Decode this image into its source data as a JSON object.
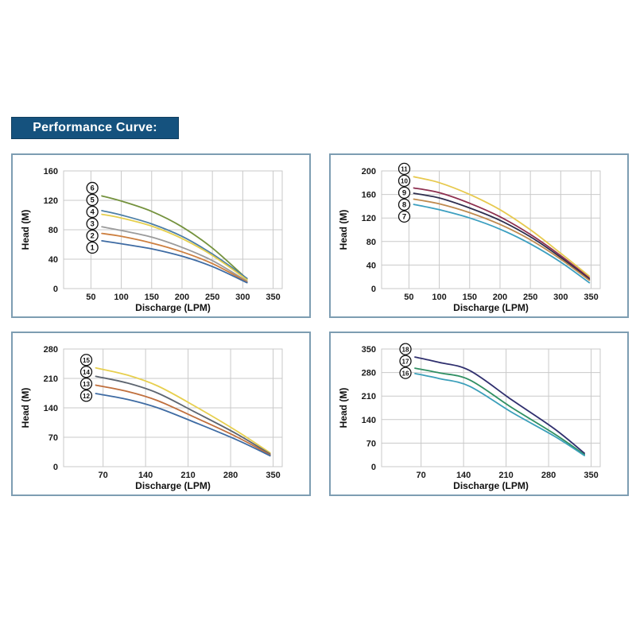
{
  "header": {
    "label": "Performance Curve:",
    "bg": "#15527e",
    "text_color": "#ffffff"
  },
  "colors": {
    "panel_border": "#7d9db2",
    "gridline": "#c9c9c9",
    "tick_text": "#1a1a1a",
    "axis_text": "#111111"
  },
  "chart_data": [
    {
      "id": "top-left",
      "type": "line",
      "xlabel": "Discharge (LPM)",
      "ylabel": "Head (M)",
      "x_domain": [
        5,
        365
      ],
      "xticks": [
        50,
        100,
        150,
        200,
        250,
        300,
        350
      ],
      "yticks": [
        0,
        40,
        80,
        120,
        160
      ],
      "ylim": [
        0,
        160
      ],
      "grid": true,
      "legend_position": "circled-badges-left",
      "series": [
        {
          "label": "6",
          "color": "#74923d",
          "points": [
            [
              68,
              126
            ],
            [
              100,
              119
            ],
            [
              150,
              105
            ],
            [
              200,
              84
            ],
            [
              250,
              55
            ],
            [
              307,
              13
            ]
          ]
        },
        {
          "label": "5",
          "color": "#4d7fa6",
          "points": [
            [
              68,
              106
            ],
            [
              100,
              100
            ],
            [
              150,
              88
            ],
            [
              200,
              71
            ],
            [
              250,
              47
            ],
            [
              307,
              14
            ]
          ]
        },
        {
          "label": "4",
          "color": "#e5cf4e",
          "points": [
            [
              68,
              101
            ],
            [
              100,
              96
            ],
            [
              150,
              85
            ],
            [
              200,
              68
            ],
            [
              250,
              45
            ],
            [
              307,
              12
            ]
          ]
        },
        {
          "label": "3",
          "color": "#9b9b9b",
          "points": [
            [
              68,
              84
            ],
            [
              100,
              79
            ],
            [
              150,
              70
            ],
            [
              200,
              56
            ],
            [
              250,
              38
            ],
            [
              307,
              10
            ]
          ]
        },
        {
          "label": "2",
          "color": "#cd7f3f",
          "points": [
            [
              68,
              75
            ],
            [
              100,
              71
            ],
            [
              150,
              62
            ],
            [
              200,
              50
            ],
            [
              250,
              34
            ],
            [
              307,
              9
            ]
          ]
        },
        {
          "label": "1",
          "color": "#3e6ba3",
          "points": [
            [
              68,
              65
            ],
            [
              100,
              61
            ],
            [
              150,
              54
            ],
            [
              200,
              44
            ],
            [
              250,
              30
            ],
            [
              307,
              8
            ]
          ]
        }
      ]
    },
    {
      "id": "top-right",
      "type": "line",
      "xlabel": "Discharge (LPM)",
      "ylabel": "Head (M)",
      "x_domain": [
        5,
        365
      ],
      "xticks": [
        50,
        100,
        150,
        200,
        250,
        300,
        350
      ],
      "yticks": [
        0,
        40,
        80,
        120,
        160,
        200
      ],
      "ylim": [
        0,
        200
      ],
      "grid": true,
      "legend_position": "circled-badges-left",
      "series": [
        {
          "label": "11",
          "color": "#e7c94e",
          "points": [
            [
              58,
              190
            ],
            [
              100,
              180
            ],
            [
              150,
              160
            ],
            [
              200,
              134
            ],
            [
              250,
              100
            ],
            [
              300,
              60
            ],
            [
              347,
              21
            ]
          ]
        },
        {
          "label": "10",
          "color": "#8e3050",
          "points": [
            [
              58,
              171
            ],
            [
              100,
              163
            ],
            [
              150,
              145
            ],
            [
              200,
              122
            ],
            [
              250,
              92
            ],
            [
              300,
              56
            ],
            [
              347,
              18
            ]
          ]
        },
        {
          "label": "9",
          "color": "#2e2e4e",
          "points": [
            [
              58,
              162
            ],
            [
              100,
              154
            ],
            [
              150,
              137
            ],
            [
              200,
              116
            ],
            [
              250,
              88
            ],
            [
              300,
              53
            ],
            [
              347,
              16
            ]
          ]
        },
        {
          "label": "8",
          "color": "#bf8a4e",
          "points": [
            [
              58,
              152
            ],
            [
              100,
              144
            ],
            [
              150,
              129
            ],
            [
              200,
              109
            ],
            [
              250,
              83
            ],
            [
              300,
              50
            ],
            [
              347,
              14
            ]
          ]
        },
        {
          "label": "7",
          "color": "#3c9fc0",
          "points": [
            [
              58,
              143
            ],
            [
              100,
              134
            ],
            [
              150,
              120
            ],
            [
              200,
              101
            ],
            [
              250,
              76
            ],
            [
              300,
              45
            ],
            [
              347,
              10
            ]
          ]
        }
      ]
    },
    {
      "id": "bottom-left",
      "type": "line",
      "xlabel": "Discharge (LPM)",
      "ylabel": "Head (M)",
      "x_domain": [
        5,
        365
      ],
      "xticks": [
        70,
        140,
        210,
        280,
        350
      ],
      "yticks": [
        0,
        70,
        140,
        210,
        280
      ],
      "ylim": [
        0,
        280
      ],
      "grid": true,
      "legend_position": "circled-badges-left",
      "series": [
        {
          "label": "15",
          "color": "#e7cf4e",
          "points": [
            [
              58,
              235
            ],
            [
              110,
              218
            ],
            [
              160,
              192
            ],
            [
              220,
              145
            ],
            [
              290,
              85
            ],
            [
              345,
              33
            ]
          ]
        },
        {
          "label": "14",
          "color": "#5d6570",
          "points": [
            [
              58,
              215
            ],
            [
              110,
              199
            ],
            [
              160,
              175
            ],
            [
              220,
              131
            ],
            [
              290,
              78
            ],
            [
              345,
              30
            ]
          ]
        },
        {
          "label": "13",
          "color": "#c06f3d",
          "points": [
            [
              58,
              194
            ],
            [
              110,
              179
            ],
            [
              160,
              157
            ],
            [
              220,
              118
            ],
            [
              290,
              71
            ],
            [
              345,
              28
            ]
          ]
        },
        {
          "label": "12",
          "color": "#3e6ba3",
          "points": [
            [
              58,
              174
            ],
            [
              110,
              160
            ],
            [
              160,
              140
            ],
            [
              220,
              106
            ],
            [
              290,
              64
            ],
            [
              345,
              26
            ]
          ]
        }
      ]
    },
    {
      "id": "bottom-right",
      "type": "line",
      "xlabel": "Discharge (LPM)",
      "ylabel": "Head (M)",
      "x_domain": [
        5,
        365
      ],
      "xticks": [
        70,
        140,
        210,
        280,
        350
      ],
      "yticks": [
        0,
        70,
        140,
        210,
        280,
        350
      ],
      "ylim": [
        0,
        350
      ],
      "grid": true,
      "legend_position": "circled-badges-left",
      "series": [
        {
          "label": "18",
          "color": "#2f2f6e",
          "points": [
            [
              60,
              326
            ],
            [
              100,
              310
            ],
            [
              150,
              286
            ],
            [
              220,
              198
            ],
            [
              290,
              112
            ],
            [
              339,
              40
            ]
          ]
        },
        {
          "label": "17",
          "color": "#2f8f62",
          "points": [
            [
              60,
              293
            ],
            [
              100,
              279
            ],
            [
              150,
              258
            ],
            [
              220,
              175
            ],
            [
              290,
              97
            ],
            [
              339,
              36
            ]
          ]
        },
        {
          "label": "16",
          "color": "#3b9fba",
          "points": [
            [
              60,
              277
            ],
            [
              100,
              262
            ],
            [
              150,
              239
            ],
            [
              220,
              161
            ],
            [
              290,
              90
            ],
            [
              339,
              33
            ]
          ]
        }
      ]
    }
  ]
}
